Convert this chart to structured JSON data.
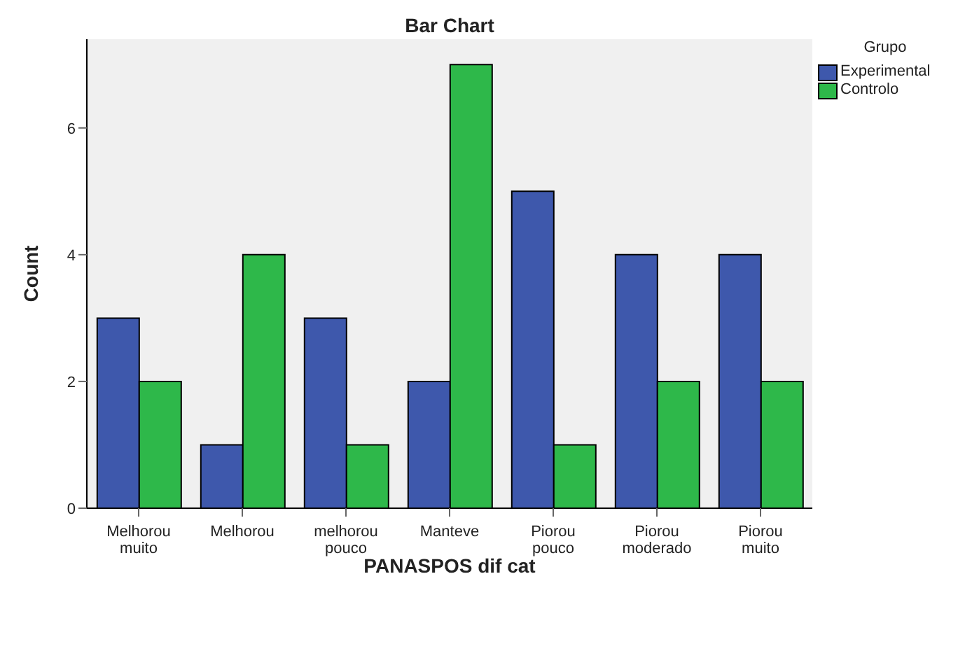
{
  "chart_data": {
    "type": "bar",
    "title": "Bar Chart",
    "xlabel": "PANASPOS dif cat",
    "ylabel": "Count",
    "legend_title": "Grupo",
    "legend": "top right",
    "categories": [
      "Melhorou muito",
      "Melhorou",
      "melhorou pouco",
      "Manteve",
      "Piorou pouco",
      "Piorou moderado",
      "Piorou muito"
    ],
    "series": [
      {
        "name": "Experimental",
        "color": "#3e58ac",
        "values": [
          3,
          1,
          3,
          2,
          5,
          4,
          4
        ]
      },
      {
        "name": "Controlo",
        "color": "#2eb84a",
        "values": [
          2,
          4,
          1,
          7,
          1,
          2,
          2
        ]
      }
    ],
    "ylim": [
      0,
      7.4
    ],
    "yticks": [
      0,
      2,
      4,
      6
    ]
  }
}
